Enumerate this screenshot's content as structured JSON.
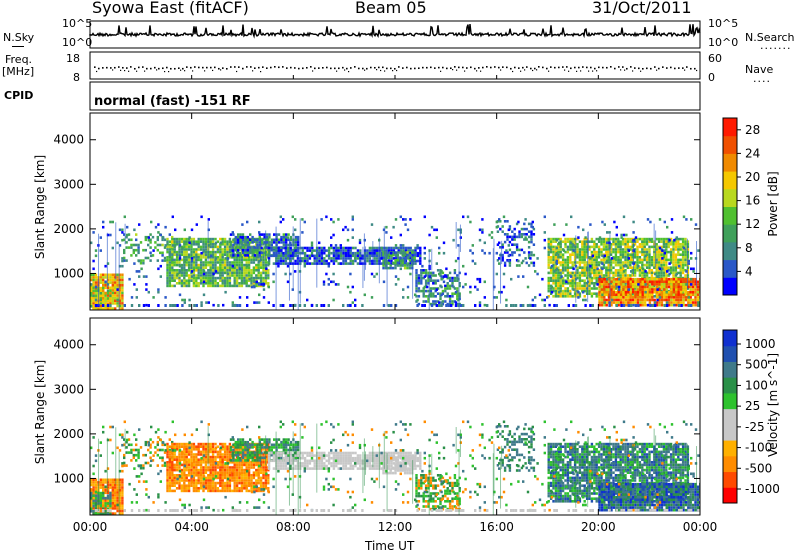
{
  "header": {
    "station": "Syowa East (fitACF)",
    "beam": "Beam 05",
    "date": "31/Oct/2011"
  },
  "nsky": {
    "label": "N.Sky",
    "axis_top": "10^5",
    "axis_bottom": "10^0"
  },
  "nsearch": {
    "label": "N.Search",
    "axis_top": "10^5",
    "axis_bottom": "10^0"
  },
  "freq": {
    "label": "Freq.",
    "unit": "[MHz]",
    "top": "18",
    "bottom": "8"
  },
  "nave": {
    "label": "Nave",
    "top": "60",
    "bottom": "0"
  },
  "cpid": {
    "label": "CPID",
    "value": "normal (fast) -151 RF"
  },
  "colors": {
    "power": [
      "#0000ff",
      "#2a58c8",
      "#3f8a86",
      "#3fa05a",
      "#50c030",
      "#b8d81f",
      "#f5c800",
      "#f08a00",
      "#f05000",
      "#ff1a00"
    ],
    "velocity": [
      "#ff0000",
      "#ff4a00",
      "#ff8c00",
      "#ffb000",
      "#c8c8c8",
      "#c8c8c8",
      "#2ec22e",
      "#2a9048",
      "#3f7a8a",
      "#2050b0",
      "#1030d0"
    ]
  },
  "chart_data": [
    {
      "type": "heatmap",
      "name": "power",
      "ylabel": "Slant Range [km]",
      "xlabel": "",
      "xlim": [
        0,
        24
      ],
      "ylim": [
        180,
        4600
      ],
      "xticks": [
        "00:00",
        "04:00",
        "08:00",
        "12:00",
        "16:00",
        "20:00",
        "00:00"
      ],
      "yticks": [
        1000,
        2000,
        3000,
        4000
      ],
      "colorbar": {
        "label": "Power [dB]",
        "ticks": [
          4,
          8,
          12,
          16,
          20,
          24,
          28
        ],
        "range": [
          0,
          30
        ]
      }
    },
    {
      "type": "heatmap",
      "name": "velocity",
      "ylabel": "Slant Range [km]",
      "xlabel": "Time UT",
      "xlim": [
        0,
        24
      ],
      "ylim": [
        180,
        4600
      ],
      "xticks": [
        "00:00",
        "04:00",
        "08:00",
        "12:00",
        "16:00",
        "20:00",
        "00:00"
      ],
      "yticks": [
        1000,
        2000,
        3000,
        4000
      ],
      "colorbar": {
        "label": "Velocity [m s^-1]",
        "ticks": [
          1000,
          500,
          100,
          25,
          -25,
          -100,
          -500,
          -1000
        ]
      }
    }
  ]
}
